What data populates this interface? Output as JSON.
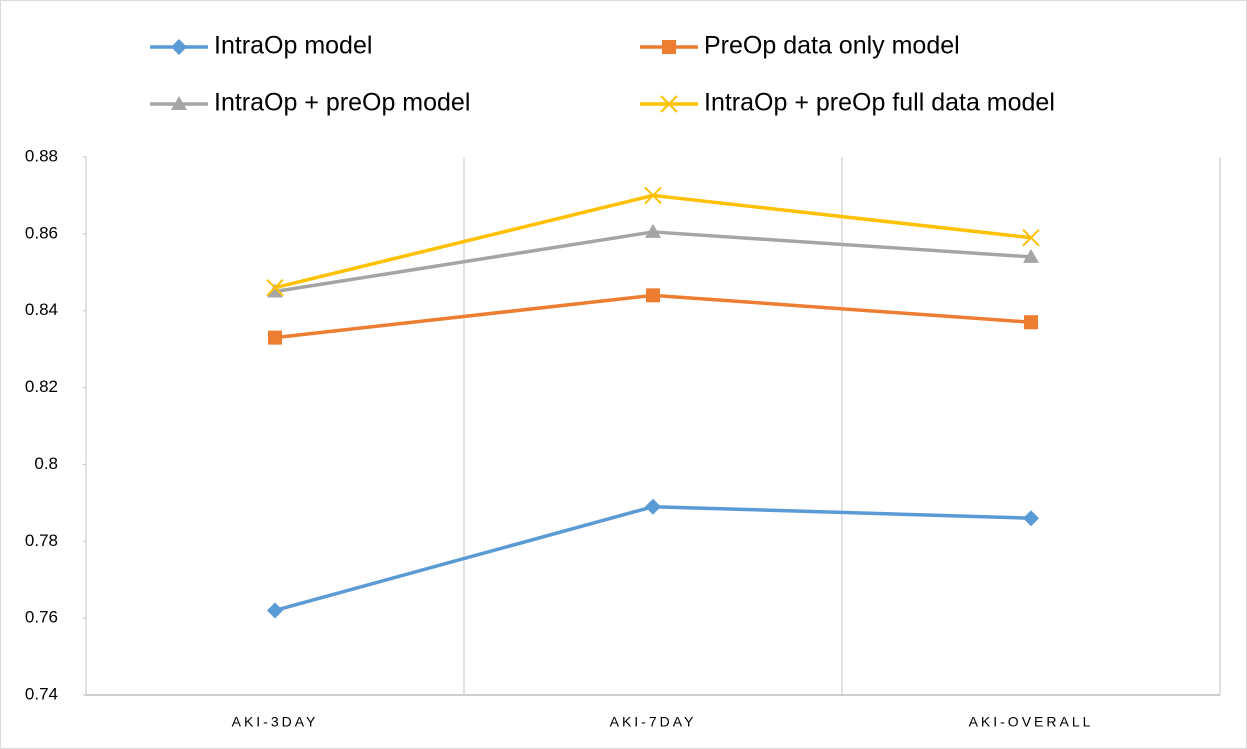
{
  "chart_data": {
    "type": "line",
    "categories": [
      "AKI-3DAY",
      "AKI-7DAY",
      "AKI-OVERALL"
    ],
    "series": [
      {
        "name": "IntraOp model",
        "color": "#5b9bd5",
        "marker": "diamond",
        "values": [
          0.762,
          0.789,
          0.786
        ]
      },
      {
        "name": "PreOp data only model",
        "color": "#ed7d31",
        "marker": "square",
        "values": [
          0.833,
          0.844,
          0.837
        ]
      },
      {
        "name": "IntraOp + preOp model",
        "color": "#a5a5a5",
        "marker": "triangle",
        "values": [
          0.845,
          0.8605,
          0.854
        ]
      },
      {
        "name": "IntraOp + preOp full data model",
        "color": "#ffc000",
        "marker": "x",
        "values": [
          0.846,
          0.87,
          0.859
        ]
      }
    ],
    "ylim": [
      0.74,
      0.88
    ],
    "yticks": [
      0.74,
      0.76,
      0.78,
      0.8,
      0.82,
      0.84,
      0.86,
      0.88
    ],
    "legend": "top"
  }
}
